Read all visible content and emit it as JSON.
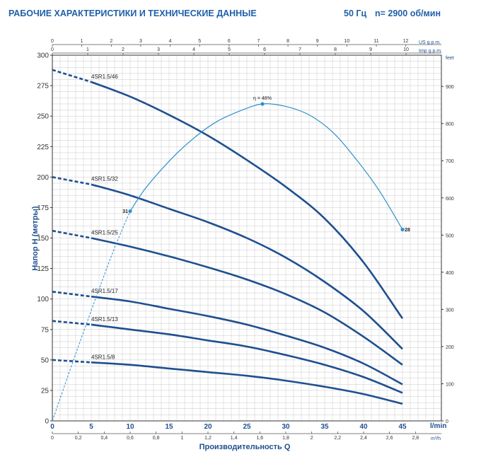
{
  "header": {
    "title": "РАБОЧИЕ ХАРАКТЕРИСТИКИ И ТЕХНИЧЕСКИЕ ДАННЫЕ",
    "frequency": "50 Гц",
    "speed": "n= 2900 об/мин"
  },
  "colors": {
    "curve": "#1f4f8f",
    "efficiency": "#2f90cc",
    "grid": "#c8c8c8",
    "header": "#1f5fa8"
  },
  "chart_data": {
    "type": "line",
    "title": "",
    "xlabel": "Производительность Q",
    "ylabel": "Напор H (метры)",
    "x_unit_bottom": "l/min",
    "x_unit_m3h": "m³/h",
    "x_unit_us": "US g.p.m.",
    "x_unit_imp": "Imp g.p.m.",
    "y_unit_right": "feet",
    "xlim": [
      0,
      50
    ],
    "ylim": [
      0,
      300
    ],
    "y2lim": [
      0,
      984
    ],
    "grid": true,
    "x_ticks": [
      0,
      5,
      10,
      15,
      20,
      25,
      30,
      35,
      40,
      45
    ],
    "y_ticks": [
      0,
      25,
      50,
      75,
      100,
      125,
      150,
      175,
      200,
      225,
      250,
      275,
      300
    ],
    "y2_ticks": [
      0,
      100,
      200,
      300,
      400,
      500,
      600,
      700,
      800,
      900
    ],
    "m3h_ticks": [
      "0",
      "0,2",
      "0,4",
      "0,6",
      "0,8",
      "1",
      "1,2",
      "1,4",
      "1,6",
      "1,8",
      "2",
      "2,2",
      "2,4",
      "2,6",
      "2,8"
    ],
    "us_ticks": [
      "0",
      "1",
      "2",
      "3",
      "4",
      "5",
      "6",
      "7",
      "8",
      "9",
      "10",
      "11",
      "12"
    ],
    "imp_ticks": [
      "0",
      "1",
      "2",
      "3",
      "4",
      "5",
      "6",
      "7",
      "8",
      "9",
      "10"
    ],
    "series": [
      {
        "name": "4SR1.5/46",
        "x": [
          5,
          10,
          15,
          20,
          25,
          30,
          35,
          40,
          45
        ],
        "y": [
          278,
          266,
          251,
          234,
          214,
          192,
          166,
          130,
          84
        ],
        "dashed_x": [
          0,
          5
        ],
        "dashed_y": [
          288,
          278
        ]
      },
      {
        "name": "4SR1.5/32",
        "x": [
          5,
          10,
          15,
          20,
          25,
          30,
          35,
          40,
          45
        ],
        "y": [
          194,
          185,
          174,
          163,
          150,
          134,
          114,
          90,
          59
        ],
        "dashed_x": [
          0,
          5
        ],
        "dashed_y": [
          200,
          194
        ]
      },
      {
        "name": "4SR1.5/25",
        "x": [
          5,
          10,
          15,
          20,
          25,
          30,
          35,
          40,
          45
        ],
        "y": [
          150,
          143,
          135,
          126,
          116,
          104,
          89,
          69,
          46
        ],
        "dashed_x": [
          0,
          5
        ],
        "dashed_y": [
          156,
          150
        ]
      },
      {
        "name": "4SR1.5/17",
        "x": [
          5,
          10,
          15,
          20,
          25,
          30,
          35,
          40,
          45
        ],
        "y": [
          102,
          98,
          92,
          86,
          79,
          70,
          60,
          47,
          30
        ],
        "dashed_x": [
          0,
          5
        ],
        "dashed_y": [
          106,
          102
        ]
      },
      {
        "name": "4SR1.5/13",
        "x": [
          5,
          10,
          15,
          20,
          25,
          30,
          35,
          40,
          45
        ],
        "y": [
          79,
          75,
          71,
          66,
          61,
          54,
          46,
          36,
          23
        ],
        "dashed_x": [
          0,
          5
        ],
        "dashed_y": [
          82,
          79
        ]
      },
      {
        "name": "4SR1.5/8",
        "x": [
          5,
          10,
          15,
          20,
          25,
          30,
          35,
          40,
          45
        ],
        "y": [
          48,
          46,
          43,
          40,
          37,
          33,
          28,
          22,
          14
        ],
        "dashed_x": [
          0,
          5
        ],
        "dashed_y": [
          50,
          48
        ]
      }
    ],
    "efficiency": {
      "label": "η = 48%",
      "x": [
        10,
        12,
        15,
        18,
        21,
        24,
        27,
        30,
        33,
        36,
        39,
        42,
        45
      ],
      "y": [
        172,
        191,
        213,
        231,
        245,
        254,
        260,
        258,
        251,
        237,
        215,
        189,
        157
      ],
      "dashed_x": [
        0,
        3,
        6,
        8,
        10
      ],
      "dashed_y": [
        0,
        55,
        108,
        142,
        172
      ],
      "points": [
        {
          "x": 10,
          "y": 172,
          "label": "31"
        },
        {
          "x": 27,
          "y": 260,
          "label": ""
        },
        {
          "x": 45,
          "y": 157,
          "label": "28"
        }
      ]
    }
  }
}
